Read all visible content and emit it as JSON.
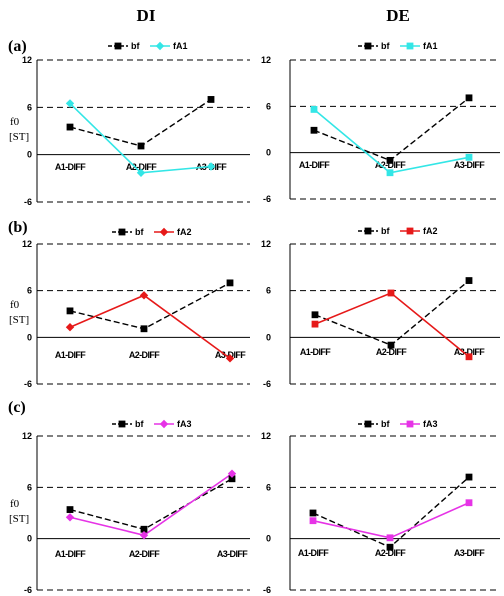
{
  "columns": [
    "DI",
    "DE"
  ],
  "y_label_line1": "f0",
  "y_label_line2": "[ST]",
  "chart_data": [
    {
      "type": "line",
      "row": "(a)",
      "column": "DI",
      "categories": [
        "A1-DIFF",
        "A2-DIFF",
        "A3-DIFF"
      ],
      "ylim": [
        -6,
        12
      ],
      "yticks": [
        -6,
        0,
        6,
        12
      ],
      "grid": true,
      "legend_position": "top",
      "series": [
        {
          "name": "bf",
          "values": [
            3.5,
            1.1,
            7.0
          ],
          "color": "#000000",
          "dashed": true,
          "marker": "square"
        },
        {
          "name": "fA1",
          "values": [
            6.5,
            -2.3,
            -1.5
          ],
          "color": "#33e6e6",
          "dashed": false,
          "marker": "diamond"
        }
      ]
    },
    {
      "type": "line",
      "row": "(a)",
      "column": "DE",
      "categories": [
        "A1-DIFF",
        "A2-DIFF",
        "A3-DIFF"
      ],
      "ylim": [
        -6,
        12
      ],
      "yticks": [
        -6,
        0,
        6,
        12
      ],
      "grid": true,
      "legend_position": "top",
      "series": [
        {
          "name": "bf",
          "values": [
            2.9,
            -1.0,
            7.1
          ],
          "color": "#000000",
          "dashed": true,
          "marker": "square"
        },
        {
          "name": "fA1",
          "values": [
            5.6,
            -2.6,
            -0.6
          ],
          "color": "#33e6e6",
          "dashed": false,
          "marker": "square"
        }
      ]
    },
    {
      "type": "line",
      "row": "(b)",
      "column": "DI",
      "categories": [
        "A1-DIFF",
        "A2-DIFF",
        "A3-DIFF"
      ],
      "ylim": [
        -6,
        12
      ],
      "yticks": [
        -6,
        0,
        6,
        12
      ],
      "grid": true,
      "legend_position": "top",
      "series": [
        {
          "name": "bf",
          "values": [
            3.4,
            1.1,
            7.0
          ],
          "color": "#000000",
          "dashed": true,
          "marker": "square"
        },
        {
          "name": "fA2",
          "values": [
            1.3,
            5.4,
            -2.7
          ],
          "color": "#e61919",
          "dashed": false,
          "marker": "diamond"
        }
      ]
    },
    {
      "type": "line",
      "row": "(b)",
      "column": "DE",
      "categories": [
        "A1-DIFF",
        "A2-DIFF",
        "A3-DIFF"
      ],
      "ylim": [
        -6,
        12
      ],
      "yticks": [
        -6,
        0,
        6,
        12
      ],
      "grid": true,
      "legend_position": "top",
      "series": [
        {
          "name": "bf",
          "values": [
            2.9,
            -1.0,
            7.3
          ],
          "color": "#000000",
          "dashed": true,
          "marker": "square"
        },
        {
          "name": "fA2",
          "values": [
            1.7,
            5.7,
            -2.5
          ],
          "color": "#e61919",
          "dashed": false,
          "marker": "square"
        }
      ]
    },
    {
      "type": "line",
      "row": "(c)",
      "column": "DI",
      "categories": [
        "A1-DIFF",
        "A2-DIFF",
        "A3-DIFF"
      ],
      "ylim": [
        -6,
        12
      ],
      "yticks": [
        -6,
        0,
        6,
        12
      ],
      "grid": true,
      "legend_position": "top",
      "series": [
        {
          "name": "bf",
          "values": [
            3.4,
            1.1,
            7.0
          ],
          "color": "#000000",
          "dashed": true,
          "marker": "square"
        },
        {
          "name": "fA3",
          "values": [
            2.5,
            0.4,
            7.6
          ],
          "color": "#e633e6",
          "dashed": false,
          "marker": "diamond"
        }
      ]
    },
    {
      "type": "line",
      "row": "(c)",
      "column": "DE",
      "categories": [
        "A1-DIFF",
        "A2-DIFF",
        "A3-DIFF"
      ],
      "ylim": [
        -6,
        12
      ],
      "yticks": [
        -6,
        0,
        6,
        12
      ],
      "grid": true,
      "legend_position": "top",
      "series": [
        {
          "name": "bf",
          "values": [
            3.0,
            -1.0,
            7.2
          ],
          "color": "#000000",
          "dashed": true,
          "marker": "square"
        },
        {
          "name": "fA3",
          "values": [
            2.1,
            0.1,
            4.2
          ],
          "color": "#e633e6",
          "dashed": false,
          "marker": "square"
        }
      ]
    }
  ]
}
